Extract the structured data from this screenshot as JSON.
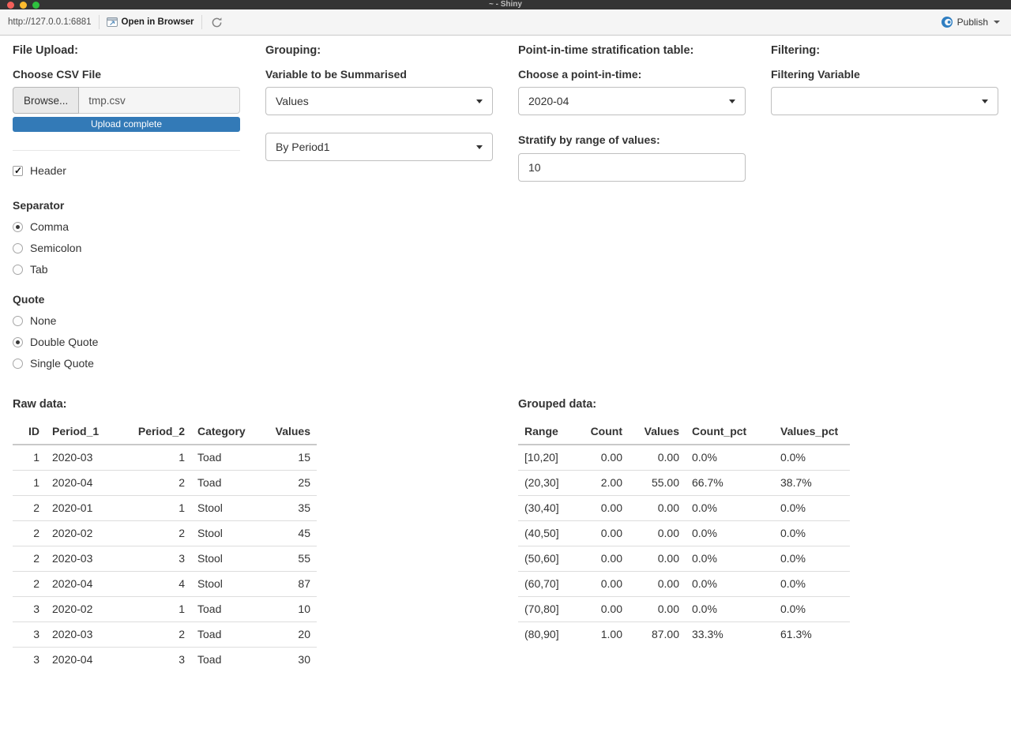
{
  "window": {
    "title": "~ - Shiny"
  },
  "toolbar": {
    "url": "http://127.0.0.1:6881",
    "open_in_browser": "Open in Browser",
    "publish": "Publish"
  },
  "panels": {
    "file_upload": {
      "heading": "File Upload:",
      "label": "Choose CSV File",
      "browse_label": "Browse...",
      "filename": "tmp.csv",
      "progress": "Upload complete",
      "header_label": "Header",
      "header_checked": true,
      "separator": {
        "label": "Separator",
        "options": [
          "Comma",
          "Semicolon",
          "Tab"
        ],
        "selected": "Comma"
      },
      "quote": {
        "label": "Quote",
        "options": [
          "None",
          "Double Quote",
          "Single Quote"
        ],
        "selected": "Double Quote"
      }
    },
    "grouping": {
      "heading": "Grouping:",
      "label": "Variable to be Summarised",
      "variable_value": "Values",
      "group_by_value": "By Period1"
    },
    "stratification": {
      "heading": "Point-in-time stratification table:",
      "label": "Choose a point-in-time:",
      "point_in_time_value": "2020-04",
      "range_label": "Stratify by range of values:",
      "range_value": "10"
    },
    "filtering": {
      "heading": "Filtering:",
      "label": "Filtering Variable",
      "value": ""
    }
  },
  "raw_table": {
    "title": "Raw data:",
    "columns": [
      "ID",
      "Period_1",
      "Period_2",
      "Category",
      "Values"
    ],
    "align": [
      "right",
      "left",
      "right",
      "left",
      "right"
    ],
    "rows": [
      [
        "1",
        "2020-03",
        "1",
        "Toad",
        "15"
      ],
      [
        "1",
        "2020-04",
        "2",
        "Toad",
        "25"
      ],
      [
        "2",
        "2020-01",
        "1",
        "Stool",
        "35"
      ],
      [
        "2",
        "2020-02",
        "2",
        "Stool",
        "45"
      ],
      [
        "2",
        "2020-03",
        "3",
        "Stool",
        "55"
      ],
      [
        "2",
        "2020-04",
        "4",
        "Stool",
        "87"
      ],
      [
        "3",
        "2020-02",
        "1",
        "Toad",
        "10"
      ],
      [
        "3",
        "2020-03",
        "2",
        "Toad",
        "20"
      ],
      [
        "3",
        "2020-04",
        "3",
        "Toad",
        "30"
      ]
    ]
  },
  "grouped_table": {
    "title": "Grouped data:",
    "columns": [
      "Range",
      "Count",
      "Values",
      "Count_pct",
      "Values_pct"
    ],
    "align": [
      "left",
      "right",
      "right",
      "left",
      "left"
    ],
    "rows": [
      [
        "[10,20]",
        "0.00",
        "0.00",
        "0.0%",
        "0.0%"
      ],
      [
        "(20,30]",
        "2.00",
        "55.00",
        "66.7%",
        "38.7%"
      ],
      [
        "(30,40]",
        "0.00",
        "0.00",
        "0.0%",
        "0.0%"
      ],
      [
        "(40,50]",
        "0.00",
        "0.00",
        "0.0%",
        "0.0%"
      ],
      [
        "(50,60]",
        "0.00",
        "0.00",
        "0.0%",
        "0.0%"
      ],
      [
        "(60,70]",
        "0.00",
        "0.00",
        "0.0%",
        "0.0%"
      ],
      [
        "(70,80]",
        "0.00",
        "0.00",
        "0.0%",
        "0.0%"
      ],
      [
        "(80,90]",
        "1.00",
        "87.00",
        "33.3%",
        "61.3%"
      ]
    ]
  },
  "colors": {
    "accent_blue": "#337ab7",
    "publish_icon_blue": "#2f7ec1",
    "titlebar_bg": "#343434"
  }
}
